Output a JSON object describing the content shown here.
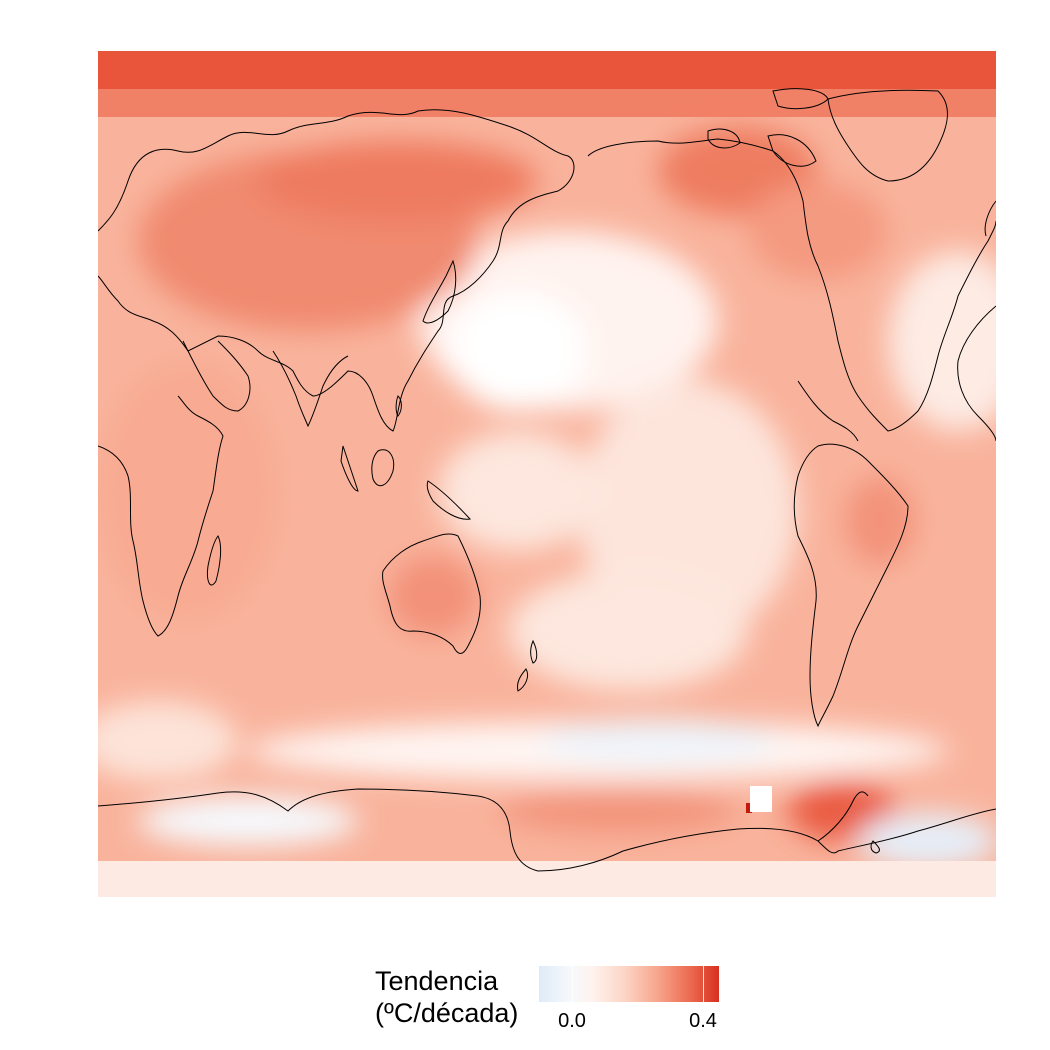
{
  "legend": {
    "title_line1": "Tendencia",
    "title_line2": "(ºC/década)",
    "tick_labels": [
      "0.0",
      "0.4"
    ],
    "tick_values": [
      0.0,
      0.4
    ],
    "range": [
      -0.1,
      0.45
    ]
  },
  "colors": {
    "cold": "#deebf7",
    "neutral": "#ffffff",
    "warm_light": "#fcd4c5",
    "warm_mid": "#f7a58c",
    "warm_strong": "#ec6a50",
    "warm_max": "#d7301f",
    "coastline": "#000000"
  },
  "map": {
    "projection": "equirectangular, Pacific-centred",
    "variable": "temperature trend"
  }
}
